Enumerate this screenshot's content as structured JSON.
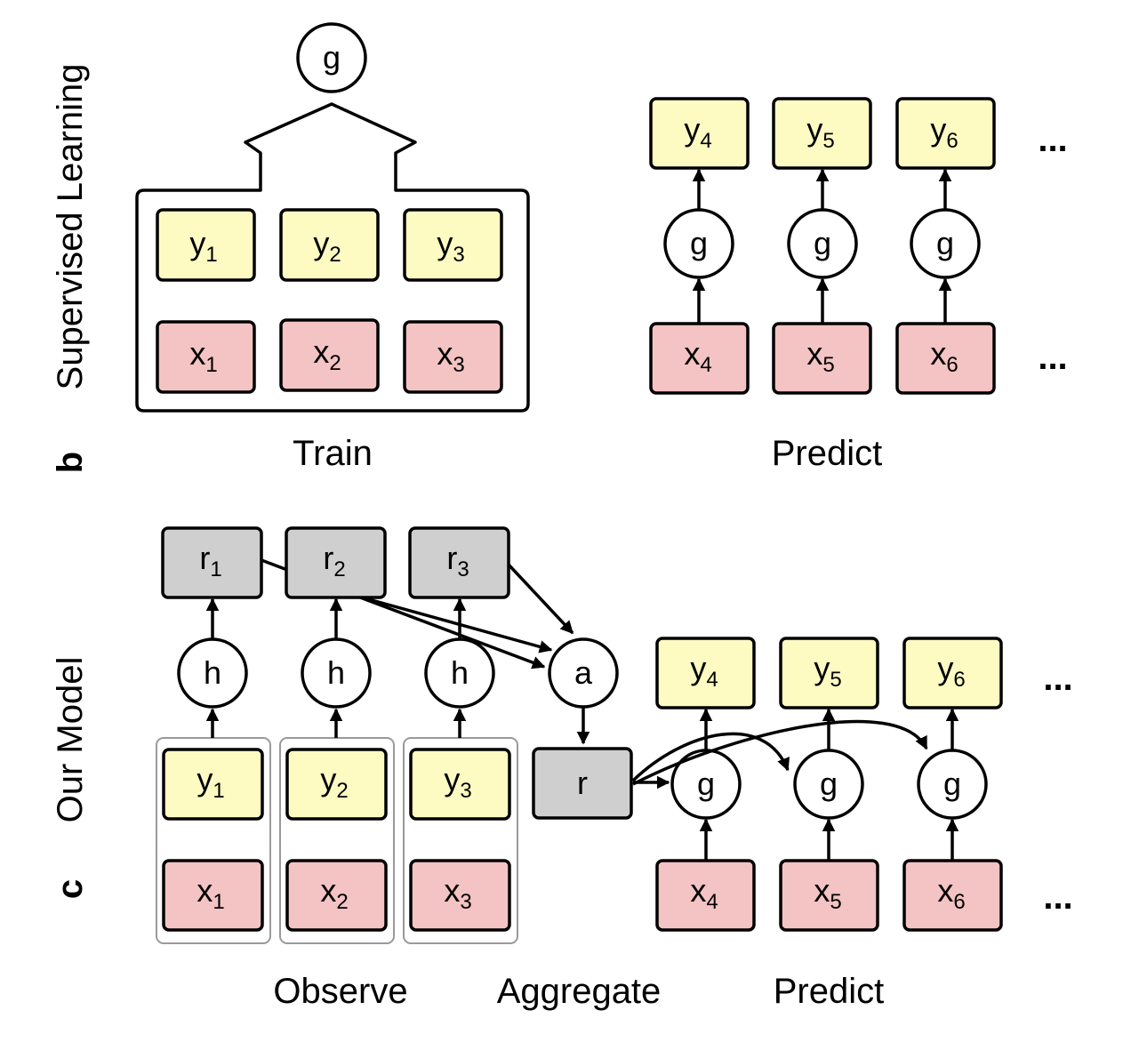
{
  "panel_b": {
    "letter": "b",
    "side_label": "Supervised Learning",
    "train_caption": "Train",
    "predict_caption": "Predict",
    "train_model_node": "g",
    "train_y": [
      {
        "base": "y",
        "sub": "1"
      },
      {
        "base": "y",
        "sub": "2"
      },
      {
        "base": "y",
        "sub": "3"
      }
    ],
    "train_x": [
      {
        "base": "x",
        "sub": "1"
      },
      {
        "base": "x",
        "sub": "2"
      },
      {
        "base": "x",
        "sub": "3"
      }
    ],
    "predict_y": [
      {
        "base": "y",
        "sub": "4"
      },
      {
        "base": "y",
        "sub": "5"
      },
      {
        "base": "y",
        "sub": "6"
      }
    ],
    "predict_nodes": [
      "g",
      "g",
      "g"
    ],
    "predict_x": [
      {
        "base": "x",
        "sub": "4"
      },
      {
        "base": "x",
        "sub": "5"
      },
      {
        "base": "x",
        "sub": "6"
      }
    ],
    "ellipsis": "..."
  },
  "panel_c": {
    "letter": "c",
    "side_label": "Our Model",
    "observe_caption": "Observe",
    "aggregate_caption": "Aggregate",
    "predict_caption": "Predict",
    "r_boxes": [
      {
        "base": "r",
        "sub": "1"
      },
      {
        "base": "r",
        "sub": "2"
      },
      {
        "base": "r",
        "sub": "3"
      }
    ],
    "encoder_nodes": [
      "h",
      "h",
      "h"
    ],
    "observe_y": [
      {
        "base": "y",
        "sub": "1"
      },
      {
        "base": "y",
        "sub": "2"
      },
      {
        "base": "y",
        "sub": "3"
      }
    ],
    "observe_x": [
      {
        "base": "x",
        "sub": "1"
      },
      {
        "base": "x",
        "sub": "2"
      },
      {
        "base": "x",
        "sub": "3"
      }
    ],
    "aggregator_node": "a",
    "aggregate_box": "r",
    "predict_y": [
      {
        "base": "y",
        "sub": "4"
      },
      {
        "base": "y",
        "sub": "5"
      },
      {
        "base": "y",
        "sub": "6"
      }
    ],
    "decoder_nodes": [
      "g",
      "g",
      "g"
    ],
    "predict_x": [
      {
        "base": "x",
        "sub": "4"
      },
      {
        "base": "x",
        "sub": "5"
      },
      {
        "base": "x",
        "sub": "6"
      }
    ],
    "ellipsis": "..."
  }
}
